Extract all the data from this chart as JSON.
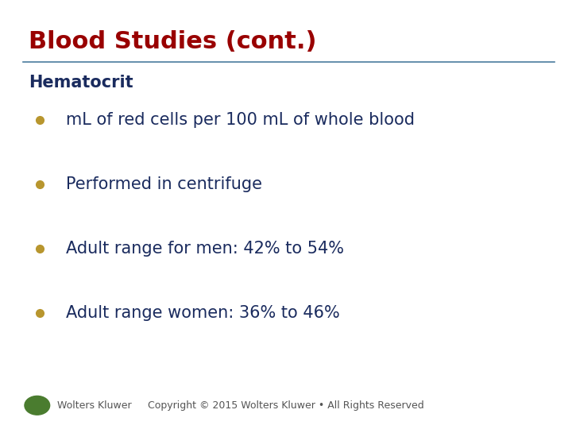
{
  "title": "Blood Studies (cont.)",
  "title_color": "#990000",
  "title_fontsize": 22,
  "subtitle": "Hematocrit",
  "subtitle_color": "#1a2b5e",
  "subtitle_fontsize": 15,
  "bullet_color": "#b8962e",
  "bullet_text_color": "#1a2b5e",
  "bullet_fontsize": 15,
  "bullets": [
    "mL of red cells per 100 mL of whole blood",
    "Performed in centrifuge",
    "Adult range for men: 42% to 54%",
    "Adult range women: 36% to 46%"
  ],
  "line_color": "#4a7c9e",
  "background_color": "#ffffff",
  "footer_text": "Copyright © 2015 Wolters Kluwer • All Rights Reserved",
  "footer_color": "#555555",
  "footer_fontsize": 9,
  "logo_text": "Wolters Kluwer",
  "logo_color": "#555555"
}
